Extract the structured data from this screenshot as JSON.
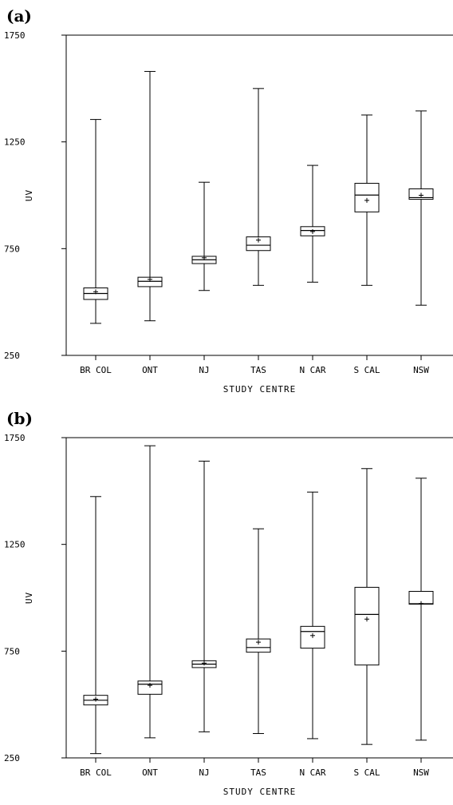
{
  "chart_data": [
    {
      "type": "box",
      "panel_label": "(a)",
      "xlabel": "STUDY CENTRE",
      "ylabel": "UV",
      "ylim": [
        250,
        1750
      ],
      "yticks": [
        "250",
        "750",
        "1250",
        "1750"
      ],
      "categories": [
        "BR COL",
        "ONT",
        "NJ",
        "TAS",
        "N CAR",
        "S CAL",
        "NSW"
      ],
      "boxes": [
        {
          "min": 400,
          "q1": 512,
          "median": 540,
          "q3": 566,
          "max": 1355,
          "mean": 548
        },
        {
          "min": 412,
          "q1": 572,
          "median": 597,
          "q3": 616,
          "max": 1580,
          "mean": 606
        },
        {
          "min": 554,
          "q1": 680,
          "median": 698,
          "q3": 714,
          "max": 1061,
          "mean": 707
        },
        {
          "min": 578,
          "q1": 741,
          "median": 766,
          "q3": 805,
          "max": 1500,
          "mean": 790
        },
        {
          "min": 593,
          "q1": 810,
          "median": 835,
          "q3": 853,
          "max": 1140,
          "mean": 830
        },
        {
          "min": 578,
          "q1": 922,
          "median": 1001,
          "q3": 1056,
          "max": 1376,
          "mean": 976
        },
        {
          "min": 485,
          "q1": 981,
          "median": 989,
          "q3": 1030,
          "max": 1395,
          "mean": 1000
        }
      ]
    },
    {
      "type": "box",
      "panel_label": "(b)",
      "xlabel": "STUDY CENTRE",
      "ylabel": "UV",
      "ylim": [
        250,
        1750
      ],
      "yticks": [
        "250",
        "750",
        "1250",
        "1750"
      ],
      "categories": [
        "BR COL",
        "ONT",
        "NJ",
        "TAS",
        "N CAR",
        "S CAL",
        "NSW"
      ],
      "boxes": [
        {
          "min": 270,
          "q1": 498,
          "median": 520,
          "q3": 543,
          "max": 1474,
          "mean": 525
        },
        {
          "min": 344,
          "q1": 548,
          "median": 595,
          "q3": 610,
          "max": 1712,
          "mean": 590
        },
        {
          "min": 372,
          "q1": 673,
          "median": 689,
          "q3": 705,
          "max": 1640,
          "mean": 694
        },
        {
          "min": 364,
          "q1": 745,
          "median": 767,
          "q3": 807,
          "max": 1323,
          "mean": 792
        },
        {
          "min": 340,
          "q1": 764,
          "median": 842,
          "q3": 866,
          "max": 1495,
          "mean": 823
        },
        {
          "min": 313,
          "q1": 685,
          "median": 922,
          "q3": 1049,
          "max": 1605,
          "mean": 900
        },
        {
          "min": 333,
          "q1": 970,
          "median": 972,
          "q3": 1030,
          "max": 1560,
          "mean": 973
        }
      ]
    }
  ]
}
